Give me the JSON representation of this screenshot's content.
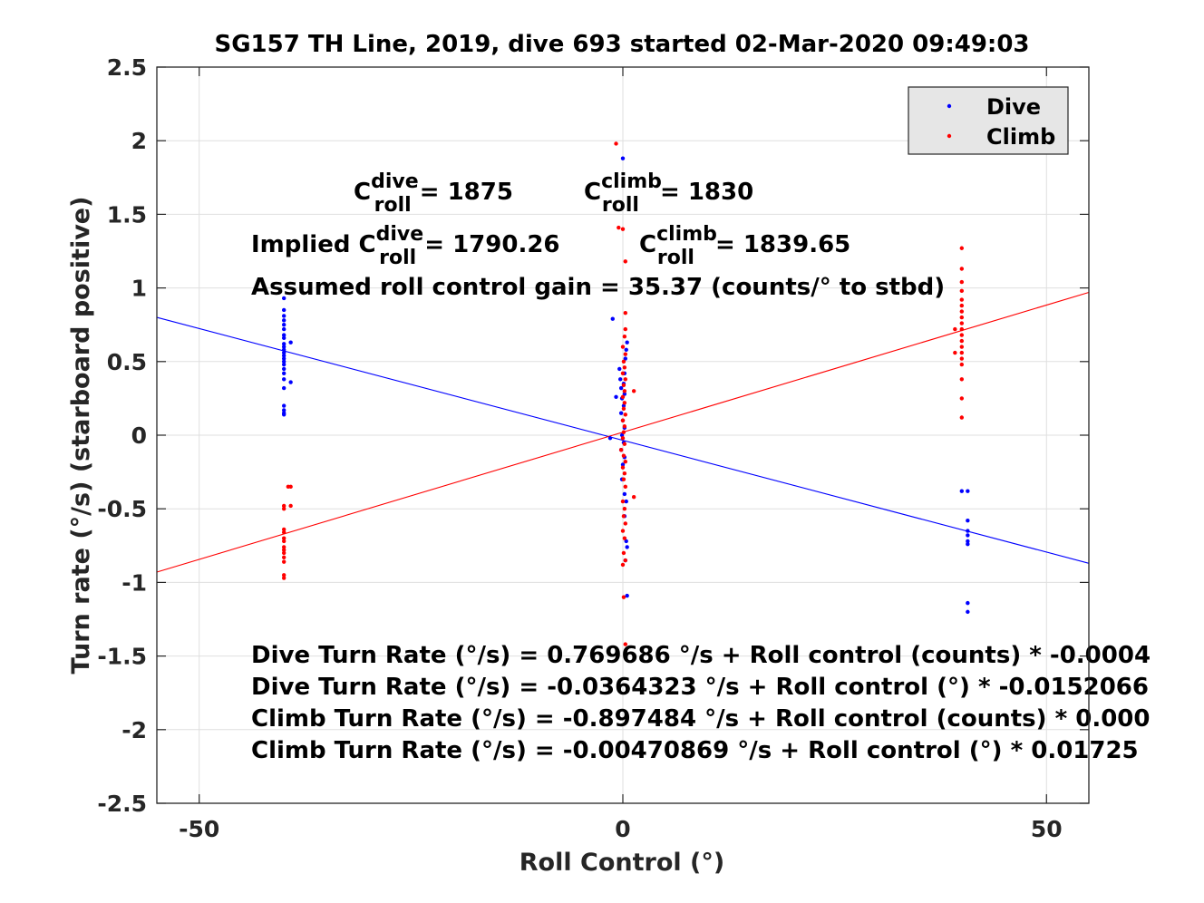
{
  "chart_data": {
    "type": "scatter",
    "title": "SG157 TH Line, 2019, dive 693 started 02-Mar-2020 09:49:03",
    "xlabel": "Roll Control (°)",
    "ylabel": "Turn rate (°/s) (starboard positive)",
    "xlim": [
      -55,
      55
    ],
    "ylim": [
      -2.5,
      2.5
    ],
    "xticks": [
      -50,
      0,
      50
    ],
    "xtick_labels": [
      "-50",
      "0",
      "50"
    ],
    "yticks": [
      2.5,
      2,
      1.5,
      1,
      0.5,
      0,
      -0.5,
      -1,
      -1.5,
      -2,
      -2.5
    ],
    "ytick_labels": [
      "2.5",
      "2",
      "1.5",
      "1",
      "0.5",
      "0",
      "-0.5",
      "-1",
      "-1.5",
      "-2",
      "-2.5"
    ],
    "grid": true,
    "legend_placement": "top-right",
    "colors": {
      "dive": "#0000ff",
      "climb": "#ff0000"
    },
    "series": [
      {
        "name": "Dive",
        "color": "#0000ff",
        "points": [
          [
            -40,
            0.93
          ],
          [
            -40,
            0.85
          ],
          [
            -40,
            0.81
          ],
          [
            -40,
            0.78
          ],
          [
            -40,
            0.75
          ],
          [
            -40,
            0.72
          ],
          [
            -40,
            0.68
          ],
          [
            -40,
            0.66
          ],
          [
            -40,
            0.62
          ],
          [
            -40,
            0.6
          ],
          [
            -40,
            0.58
          ],
          [
            -40,
            0.56
          ],
          [
            -40,
            0.54
          ],
          [
            -40,
            0.52
          ],
          [
            -40,
            0.5
          ],
          [
            -40,
            0.48
          ],
          [
            -40,
            0.45
          ],
          [
            -40,
            0.42
          ],
          [
            -40,
            0.38
          ],
          [
            -40,
            0.32
          ],
          [
            -40,
            0.2
          ],
          [
            -40,
            0.17
          ],
          [
            -40,
            0.15
          ],
          [
            -40,
            0.14
          ],
          [
            -39.2,
            0.63
          ],
          [
            -39.2,
            0.36
          ],
          [
            0,
            1.88
          ],
          [
            -1.2,
            0.79
          ],
          [
            0.5,
            0.63
          ],
          [
            0.4,
            0.58
          ],
          [
            0.3,
            0.52
          ],
          [
            -0.4,
            0.45
          ],
          [
            0.2,
            0.42
          ],
          [
            -0.3,
            0.38
          ],
          [
            0.1,
            0.35
          ],
          [
            -0.2,
            0.32
          ],
          [
            0.2,
            0.28
          ],
          [
            -0.1,
            0.25
          ],
          [
            -0.8,
            0.26
          ],
          [
            0.1,
            0.2
          ],
          [
            -0.2,
            0.15
          ],
          [
            0,
            0.1
          ],
          [
            0.2,
            0.05
          ],
          [
            -0.1,
            0.0
          ],
          [
            -1.5,
            -0.02
          ],
          [
            0.1,
            -0.05
          ],
          [
            -0.2,
            -0.1
          ],
          [
            0.2,
            -0.15
          ],
          [
            0,
            -0.2
          ],
          [
            -0.1,
            -0.3
          ],
          [
            0.2,
            -0.4
          ],
          [
            0.4,
            -0.45
          ],
          [
            0.2,
            -0.55
          ],
          [
            0.4,
            -0.72
          ],
          [
            0.5,
            -0.76
          ],
          [
            0.3,
            -0.85
          ],
          [
            0.5,
            -1.09
          ],
          [
            40,
            -0.38
          ],
          [
            40.7,
            -0.38
          ],
          [
            40.7,
            -0.58
          ],
          [
            40.7,
            -0.65
          ],
          [
            40.7,
            -0.68
          ],
          [
            40.7,
            -0.72
          ],
          [
            40.7,
            -0.74
          ],
          [
            40.7,
            -1.14
          ],
          [
            40.7,
            -1.2
          ]
        ]
      },
      {
        "name": "Climb",
        "color": "#ff0000",
        "points": [
          [
            -39.5,
            -0.35
          ],
          [
            -39.2,
            -0.35
          ],
          [
            -40,
            -0.48
          ],
          [
            -39.2,
            -0.48
          ],
          [
            -40,
            -0.5
          ],
          [
            -40,
            -0.64
          ],
          [
            -40,
            -0.66
          ],
          [
            -40,
            -0.7
          ],
          [
            -40,
            -0.72
          ],
          [
            -40,
            -0.76
          ],
          [
            -40,
            -0.78
          ],
          [
            -40,
            -0.8
          ],
          [
            -40,
            -0.83
          ],
          [
            -40,
            -0.86
          ],
          [
            -40,
            -0.95
          ],
          [
            -40,
            -0.97
          ],
          [
            -0.8,
            1.98
          ],
          [
            -0.5,
            1.41
          ],
          [
            0,
            1.4
          ],
          [
            0.3,
            1.18
          ],
          [
            0.3,
            0.83
          ],
          [
            0.3,
            0.72
          ],
          [
            0.2,
            0.67
          ],
          [
            0,
            0.6
          ],
          [
            0.3,
            0.55
          ],
          [
            0.1,
            0.5
          ],
          [
            0.2,
            0.46
          ],
          [
            0,
            0.42
          ],
          [
            0.3,
            0.38
          ],
          [
            0.1,
            0.34
          ],
          [
            0.2,
            0.3
          ],
          [
            1.3,
            0.3
          ],
          [
            0,
            0.26
          ],
          [
            0.2,
            0.22
          ],
          [
            0.1,
            0.18
          ],
          [
            0.3,
            0.14
          ],
          [
            0,
            0.1
          ],
          [
            0.2,
            0.06
          ],
          [
            0.1,
            0.02
          ],
          [
            0,
            -0.02
          ],
          [
            0.2,
            -0.06
          ],
          [
            -0.2,
            -0.1
          ],
          [
            0.1,
            -0.14
          ],
          [
            0.3,
            -0.18
          ],
          [
            0,
            -0.22
          ],
          [
            0.2,
            -0.26
          ],
          [
            0.1,
            -0.3
          ],
          [
            0.3,
            -0.35
          ],
          [
            1.3,
            -0.42
          ],
          [
            0,
            -0.45
          ],
          [
            0.2,
            -0.5
          ],
          [
            0.1,
            -0.55
          ],
          [
            0.3,
            -0.6
          ],
          [
            0,
            -0.65
          ],
          [
            0.2,
            -0.7
          ],
          [
            0.1,
            -0.8
          ],
          [
            0.3,
            -0.85
          ],
          [
            0,
            -0.88
          ],
          [
            0.1,
            -1.1
          ],
          [
            0.3,
            -1.42
          ],
          [
            40,
            1.27
          ],
          [
            40,
            1.13
          ],
          [
            40,
            1.04
          ],
          [
            40,
            0.98
          ],
          [
            40,
            0.92
          ],
          [
            40,
            0.88
          ],
          [
            40,
            0.84
          ],
          [
            40,
            0.8
          ],
          [
            40,
            0.76
          ],
          [
            40,
            0.72
          ],
          [
            39.2,
            0.72
          ],
          [
            40,
            0.68
          ],
          [
            40,
            0.64
          ],
          [
            40,
            0.6
          ],
          [
            40,
            0.56
          ],
          [
            39.2,
            0.56
          ],
          [
            40,
            0.52
          ],
          [
            40,
            0.48
          ],
          [
            40,
            0.38
          ],
          [
            40,
            0.25
          ],
          [
            40,
            0.12
          ]
        ]
      },
      {
        "name": "Dive fit",
        "color": "#0000ff",
        "line": [
          [
            -55,
            0.8
          ],
          [
            55,
            -0.87
          ]
        ]
      },
      {
        "name": "Climb fit",
        "color": "#ff0000",
        "line": [
          [
            -55,
            -0.93
          ],
          [
            55,
            0.97
          ]
        ]
      }
    ],
    "legend": [
      "Dive",
      "Climb"
    ],
    "annotations": {
      "c_dive": {
        "base": "C",
        "sup": "dive",
        "sub": "roll",
        "rest": " = 1875"
      },
      "c_climb": {
        "base": "C",
        "sup": "climb",
        "sub": "roll",
        "rest": " = 1830"
      },
      "implied_dive": {
        "prefix": "Implied C",
        "sup": "dive",
        "sub": "roll",
        "rest": " = 1790.26"
      },
      "implied_climb": {
        "base": "C",
        "sup": "climb",
        "sub": "roll",
        "rest": " = 1839.65"
      },
      "gain": "Assumed roll control gain = 35.37 (counts/° to stbd)",
      "equations": [
        "Dive Turn Rate (°/s) = 0.769686 °/s + Roll control (counts) * -0.0004",
        "Dive Turn Rate (°/s) = -0.0364323 °/s + Roll control (°) * -0.0152066",
        "Climb Turn Rate (°/s) = -0.897484 °/s + Roll control (counts) * 0.000",
        "Climb Turn Rate (°/s) = -0.00470869 °/s + Roll control (°) * 0.01725"
      ]
    }
  }
}
